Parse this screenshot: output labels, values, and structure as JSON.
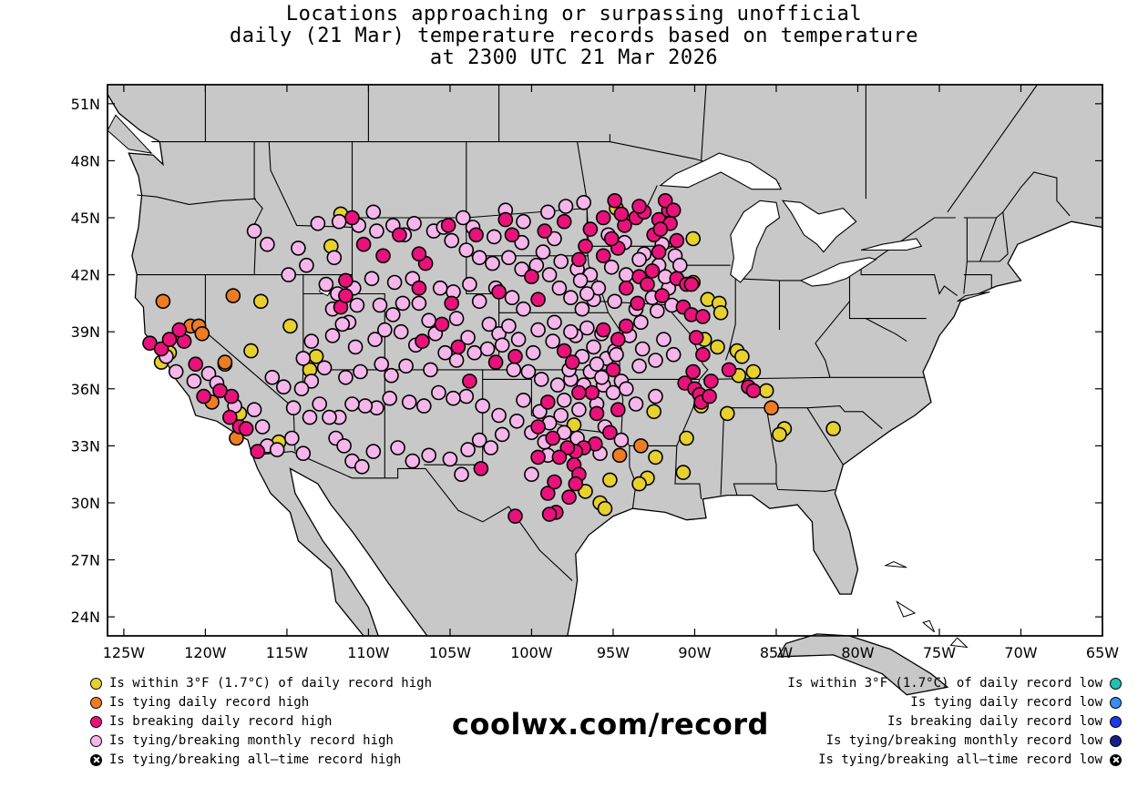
{
  "title": {
    "line1": "Locations approaching or surpassing unofficial",
    "line2": "daily (21 Mar) temperature records based on temperature",
    "line3": "at 2300 UTC 21 Mar 2026"
  },
  "axes": {
    "lat_labels": [
      "51N",
      "48N",
      "45N",
      "42N",
      "39N",
      "36N",
      "33N",
      "30N",
      "27N",
      "24N"
    ],
    "lat_values": [
      51,
      48,
      45,
      42,
      39,
      36,
      33,
      30,
      27,
      24
    ],
    "lon_labels": [
      "125W",
      "120W",
      "115W",
      "110W",
      "105W",
      "100W",
      "95W",
      "90W",
      "85W",
      "80W",
      "75W",
      "70W",
      "65W"
    ],
    "lon_values": [
      -125,
      -120,
      -115,
      -110,
      -105,
      -100,
      -95,
      -90,
      -85,
      -80,
      -75,
      -70,
      -65
    ],
    "lon_range": [
      -126,
      -65
    ],
    "lat_range": [
      23,
      52
    ]
  },
  "colors": {
    "land": "#c8c8c8",
    "near_high": "#e6d12e",
    "tie_high": "#ee7d22",
    "break_high": "#e8127a",
    "monthly_high": "#f5b6ea",
    "alltime_high": "#000000",
    "near_low": "#20c2b2",
    "tie_low": "#3a8cf0",
    "break_low": "#1c39e8",
    "monthly_low": "#142088",
    "alltime_low": "#000000"
  },
  "legend_left": [
    {
      "key": "near_high",
      "label": "Is within 3°F (1.7°C) of daily record high"
    },
    {
      "key": "tie_high",
      "label": "Is tying daily record high"
    },
    {
      "key": "break_high",
      "label": "Is breaking daily record high"
    },
    {
      "key": "monthly_high",
      "label": "Is tying/breaking monthly record high"
    },
    {
      "key": "alltime_high",
      "label": "Is tying/breaking all–time record high"
    }
  ],
  "legend_right": [
    {
      "key": "near_low",
      "label": "Is within 3°F (1.7°C) of daily record low"
    },
    {
      "key": "tie_low",
      "label": "Is tying daily record low"
    },
    {
      "key": "break_low",
      "label": "Is breaking daily record low"
    },
    {
      "key": "monthly_low",
      "label": "Is tying/breaking monthly record low"
    },
    {
      "key": "alltime_low",
      "label": "Is tying/breaking all–time record low"
    }
  ],
  "website": "coolwx.com/record",
  "stations": {
    "near_high": [
      [
        -111.7,
        45.2
      ],
      [
        -112.3,
        43.5
      ],
      [
        -116.6,
        40.6
      ],
      [
        -114.8,
        39.3
      ],
      [
        -117.2,
        38.0
      ],
      [
        -113.2,
        37.7
      ],
      [
        -113.6,
        37.0
      ],
      [
        -122.2,
        37.9
      ],
      [
        -122.7,
        37.4
      ],
      [
        -118.8,
        37.3
      ],
      [
        -117.9,
        34.7
      ],
      [
        -115.5,
        33.2
      ],
      [
        -94.8,
        45.5
      ],
      [
        -90.1,
        43.9
      ],
      [
        -89.2,
        40.7
      ],
      [
        -88.5,
        40.5
      ],
      [
        -88.4,
        40.0
      ],
      [
        -89.4,
        38.6
      ],
      [
        -88.6,
        38.2
      ],
      [
        -87.4,
        38.0
      ],
      [
        -87.1,
        37.7
      ],
      [
        -87.3,
        36.7
      ],
      [
        -86.4,
        36.9
      ],
      [
        -85.6,
        35.9
      ],
      [
        -89.6,
        35.1
      ],
      [
        -88.0,
        34.7
      ],
      [
        -84.5,
        33.9
      ],
      [
        -84.8,
        33.6
      ],
      [
        -81.5,
        33.9
      ],
      [
        -92.5,
        34.8
      ],
      [
        -90.5,
        33.4
      ],
      [
        -92.4,
        32.4
      ],
      [
        -90.7,
        31.6
      ],
      [
        -92.9,
        31.3
      ],
      [
        -93.4,
        31.0
      ],
      [
        -95.2,
        31.2
      ],
      [
        -96.7,
        30.6
      ],
      [
        -95.8,
        30.0
      ],
      [
        -95.5,
        29.7
      ],
      [
        -97.4,
        34.1
      ]
    ],
    "tie_high": [
      [
        -122.6,
        40.6
      ],
      [
        -120.9,
        39.3
      ],
      [
        -120.4,
        39.3
      ],
      [
        -120.2,
        38.9
      ],
      [
        -118.3,
        40.9
      ],
      [
        -118.8,
        37.4
      ],
      [
        -119.6,
        35.3
      ],
      [
        -118.1,
        33.4
      ],
      [
        -85.3,
        35.0
      ],
      [
        -93.3,
        33.0
      ],
      [
        -94.6,
        32.5
      ],
      [
        -90.1,
        41.6
      ]
    ],
    "break_high": [
      [
        -123.4,
        38.4
      ],
      [
        -122.7,
        38.1
      ],
      [
        -122.2,
        38.6
      ],
      [
        -121.3,
        38.5
      ],
      [
        -121.6,
        39.1
      ],
      [
        -120.6,
        37.3
      ],
      [
        -118.4,
        35.6
      ],
      [
        -118.5,
        34.5
      ],
      [
        -117.9,
        34.0
      ],
      [
        -117.5,
        33.9
      ],
      [
        -116.8,
        32.7
      ],
      [
        -120.1,
        35.6
      ],
      [
        -119.1,
        35.9
      ],
      [
        -111.4,
        41.7
      ],
      [
        -111.7,
        40.3
      ],
      [
        -111.4,
        40.9
      ],
      [
        -106.5,
        42.6
      ],
      [
        -110.3,
        43.6
      ],
      [
        -108.1,
        44.1
      ],
      [
        -105.1,
        44.6
      ],
      [
        -103.4,
        44.1
      ],
      [
        -101.2,
        44.1
      ],
      [
        -96.7,
        43.5
      ],
      [
        -95.6,
        43.0
      ],
      [
        -94.7,
        43.4
      ],
      [
        -95.1,
        43.9
      ],
      [
        -94.3,
        44.6
      ],
      [
        -93.6,
        45.0
      ],
      [
        -93.1,
        45.3
      ],
      [
        -92.5,
        44.1
      ],
      [
        -92.2,
        44.9
      ],
      [
        -91.6,
        45.4
      ],
      [
        -91.5,
        44.7
      ],
      [
        -91.1,
        43.8
      ],
      [
        -92.2,
        43.2
      ],
      [
        -92.6,
        42.2
      ],
      [
        -91.1,
        41.8
      ],
      [
        -90.5,
        41.5
      ],
      [
        -92.0,
        40.9
      ],
      [
        -90.7,
        40.3
      ],
      [
        -90.2,
        39.9
      ],
      [
        -89.9,
        38.7
      ],
      [
        -89.5,
        37.8
      ],
      [
        -90.1,
        36.9
      ],
      [
        -90.6,
        36.3
      ],
      [
        -90.0,
        36.0
      ],
      [
        -89.7,
        35.7
      ],
      [
        -89.6,
        35.3
      ],
      [
        -89.1,
        35.6
      ],
      [
        -89.0,
        36.4
      ],
      [
        -89.5,
        39.8
      ],
      [
        -90.2,
        41.5
      ],
      [
        -92.1,
        44.4
      ],
      [
        -94.2,
        41.3
      ],
      [
        -93.4,
        41.9
      ],
      [
        -92.9,
        41.5
      ],
      [
        -93.5,
        40.5
      ],
      [
        -94.2,
        39.3
      ],
      [
        -94.7,
        38.6
      ],
      [
        -95.0,
        37.0
      ],
      [
        -96.3,
        35.8
      ],
      [
        -96.0,
        34.7
      ],
      [
        -95.2,
        33.7
      ],
      [
        -94.7,
        34.9
      ],
      [
        -96.1,
        33.1
      ],
      [
        -96.8,
        32.9
      ],
      [
        -97.3,
        32.7
      ],
      [
        -97.8,
        32.9
      ],
      [
        -97.4,
        32.0
      ],
      [
        -97.1,
        31.5
      ],
      [
        -97.3,
        31.0
      ],
      [
        -97.7,
        30.3
      ],
      [
        -98.5,
        29.5
      ],
      [
        -98.9,
        29.4
      ],
      [
        -99.0,
        30.5
      ],
      [
        -98.6,
        31.1
      ],
      [
        -98.3,
        32.4
      ],
      [
        -98.7,
        33.4
      ],
      [
        -99.6,
        32.4
      ],
      [
        -101.0,
        29.3
      ],
      [
        -103.1,
        31.8
      ],
      [
        -101.0,
        37.7
      ],
      [
        -97.5,
        37.4
      ],
      [
        -98.0,
        38.0
      ],
      [
        -100.0,
        41.9
      ],
      [
        -101.6,
        44.9
      ],
      [
        -99.6,
        34.0
      ],
      [
        -97.1,
        35.8
      ],
      [
        -99.0,
        35.3
      ],
      [
        -86.7,
        36.1
      ],
      [
        -86.4,
        35.9
      ],
      [
        -87.9,
        37.0
      ],
      [
        -94.9,
        45.9
      ],
      [
        -94.5,
        45.2
      ],
      [
        -91.8,
        45.9
      ],
      [
        -91.3,
        45.4
      ],
      [
        -93.4,
        45.6
      ],
      [
        -95.6,
        45.0
      ],
      [
        -96.4,
        44.4
      ],
      [
        -97.1,
        42.8
      ],
      [
        -99.2,
        44.3
      ],
      [
        -98.0,
        44.8
      ],
      [
        -104.9,
        40.5
      ],
      [
        -106.9,
        41.3
      ],
      [
        -106.7,
        38.5
      ],
      [
        -105.5,
        39.4
      ],
      [
        -104.5,
        38.2
      ],
      [
        -103.8,
        36.4
      ],
      [
        -102.2,
        37.4
      ],
      [
        -109.1,
        43.0
      ],
      [
        -111.0,
        45.0
      ],
      [
        -106.9,
        43.1
      ],
      [
        -95.6,
        39.1
      ],
      [
        -99.6,
        40.7
      ],
      [
        -102.0,
        41.1
      ]
    ],
    "monthly_high": [
      [
        -122.4,
        37.7
      ],
      [
        -121.8,
        36.9
      ],
      [
        -120.7,
        36.4
      ],
      [
        -119.8,
        36.8
      ],
      [
        -119.3,
        36.3
      ],
      [
        -118.2,
        35.1
      ],
      [
        -117.0,
        34.9
      ],
      [
        -116.5,
        34.0
      ],
      [
        -116.2,
        33.0
      ],
      [
        -115.6,
        32.8
      ],
      [
        -114.7,
        33.4
      ],
      [
        -114.0,
        32.6
      ],
      [
        -112.0,
        33.4
      ],
      [
        -111.5,
        33.0
      ],
      [
        -111.0,
        32.2
      ],
      [
        -110.4,
        31.9
      ],
      [
        -109.7,
        32.7
      ],
      [
        -108.2,
        32.9
      ],
      [
        -107.3,
        32.2
      ],
      [
        -106.3,
        32.5
      ],
      [
        -105.0,
        32.3
      ],
      [
        -104.3,
        31.5
      ],
      [
        -103.9,
        32.8
      ],
      [
        -103.2,
        33.3
      ],
      [
        -102.5,
        32.9
      ],
      [
        -101.8,
        33.6
      ],
      [
        -102.0,
        34.6
      ],
      [
        -103.0,
        35.1
      ],
      [
        -104.0,
        35.6
      ],
      [
        -104.8,
        35.5
      ],
      [
        -105.7,
        35.8
      ],
      [
        -106.6,
        35.1
      ],
      [
        -107.5,
        35.3
      ],
      [
        -108.7,
        35.5
      ],
      [
        -109.5,
        35.0
      ],
      [
        -110.2,
        35.1
      ],
      [
        -111.0,
        35.2
      ],
      [
        -111.8,
        34.5
      ],
      [
        -112.4,
        34.5
      ],
      [
        -113.0,
        35.2
      ],
      [
        -113.6,
        34.5
      ],
      [
        -114.6,
        35.0
      ],
      [
        -115.2,
        36.1
      ],
      [
        -115.9,
        36.6
      ],
      [
        -114.0,
        37.6
      ],
      [
        -113.5,
        38.5
      ],
      [
        -112.2,
        38.8
      ],
      [
        -111.2,
        39.5
      ],
      [
        -110.8,
        38.2
      ],
      [
        -109.6,
        38.6
      ],
      [
        -109.0,
        39.1
      ],
      [
        -108.5,
        39.9
      ],
      [
        -107.9,
        40.5
      ],
      [
        -106.9,
        40.5
      ],
      [
        -106.3,
        39.6
      ],
      [
        -105.9,
        38.9
      ],
      [
        -105.3,
        37.9
      ],
      [
        -104.6,
        37.5
      ],
      [
        -103.5,
        37.9
      ],
      [
        -102.7,
        38.1
      ],
      [
        -102.0,
        38.9
      ],
      [
        -101.4,
        39.3
      ],
      [
        -100.5,
        40.2
      ],
      [
        -101.2,
        40.8
      ],
      [
        -102.2,
        41.3
      ],
      [
        -103.2,
        40.6
      ],
      [
        -103.8,
        41.5
      ],
      [
        -104.8,
        41.1
      ],
      [
        -105.6,
        41.3
      ],
      [
        -107.3,
        41.8
      ],
      [
        -108.4,
        41.6
      ],
      [
        -109.8,
        41.8
      ],
      [
        -110.9,
        41.3
      ],
      [
        -111.9,
        41.0
      ],
      [
        -112.2,
        40.2
      ],
      [
        -111.6,
        39.4
      ],
      [
        -109.3,
        40.4
      ],
      [
        -108.0,
        39.0
      ],
      [
        -107.1,
        38.3
      ],
      [
        -106.2,
        37.0
      ],
      [
        -107.7,
        37.2
      ],
      [
        -108.6,
        36.7
      ],
      [
        -109.2,
        37.3
      ],
      [
        -110.5,
        36.9
      ],
      [
        -111.4,
        36.6
      ],
      [
        -112.7,
        37.1
      ],
      [
        -113.5,
        36.4
      ],
      [
        -114.1,
        36.0
      ],
      [
        -110.7,
        40.4
      ],
      [
        -112.6,
        41.5
      ],
      [
        -112.1,
        42.9
      ],
      [
        -113.8,
        42.5
      ],
      [
        -114.9,
        42.0
      ],
      [
        -116.2,
        43.6
      ],
      [
        -117.0,
        44.3
      ],
      [
        -114.3,
        43.4
      ],
      [
        -113.1,
        44.7
      ],
      [
        -111.8,
        44.8
      ],
      [
        -110.6,
        44.6
      ],
      [
        -109.5,
        44.3
      ],
      [
        -108.5,
        44.6
      ],
      [
        -107.2,
        44.7
      ],
      [
        -106.0,
        44.3
      ],
      [
        -104.9,
        43.8
      ],
      [
        -104.0,
        43.3
      ],
      [
        -103.2,
        42.9
      ],
      [
        -102.4,
        42.6
      ],
      [
        -101.4,
        42.9
      ],
      [
        -100.6,
        42.3
      ],
      [
        -99.7,
        42.5
      ],
      [
        -98.9,
        42.0
      ],
      [
        -98.3,
        41.3
      ],
      [
        -97.6,
        40.8
      ],
      [
        -96.9,
        40.2
      ],
      [
        -96.2,
        40.7
      ],
      [
        -95.9,
        41.3
      ],
      [
        -96.4,
        42.0
      ],
      [
        -97.2,
        42.3
      ],
      [
        -98.2,
        42.7
      ],
      [
        -99.3,
        43.2
      ],
      [
        -100.6,
        43.7
      ],
      [
        -102.3,
        44.0
      ],
      [
        -103.6,
        44.5
      ],
      [
        -104.2,
        45.0
      ],
      [
        -105.4,
        44.5
      ],
      [
        -107.8,
        44.1
      ],
      [
        -109.7,
        45.3
      ],
      [
        -101.6,
        45.4
      ],
      [
        -100.5,
        44.8
      ],
      [
        -99.0,
        45.3
      ],
      [
        -97.9,
        45.6
      ],
      [
        -96.8,
        45.8
      ],
      [
        -95.3,
        44.1
      ],
      [
        -94.3,
        43.7
      ],
      [
        -93.1,
        43.1
      ],
      [
        -92.2,
        42.5
      ],
      [
        -91.6,
        41.3
      ],
      [
        -91.4,
        40.4
      ],
      [
        -92.3,
        40.1
      ],
      [
        -93.3,
        39.5
      ],
      [
        -94.0,
        38.8
      ],
      [
        -93.2,
        38.1
      ],
      [
        -92.4,
        37.5
      ],
      [
        -91.9,
        38.6
      ],
      [
        -91.3,
        37.8
      ],
      [
        -93.4,
        37.2
      ],
      [
        -94.5,
        36.4
      ],
      [
        -95.6,
        36.2
      ],
      [
        -96.4,
        36.9
      ],
      [
        -97.6,
        36.5
      ],
      [
        -98.4,
        36.2
      ],
      [
        -99.4,
        36.5
      ],
      [
        -100.2,
        36.9
      ],
      [
        -101.1,
        37.0
      ],
      [
        -99.9,
        37.9
      ],
      [
        -98.7,
        38.5
      ],
      [
        -97.3,
        38.8
      ],
      [
        -96.2,
        38.2
      ],
      [
        -95.4,
        37.6
      ],
      [
        -96.0,
        35.2
      ],
      [
        -97.1,
        34.9
      ],
      [
        -98.2,
        34.6
      ],
      [
        -98.9,
        34.2
      ],
      [
        -100.0,
        33.7
      ],
      [
        -100.9,
        34.3
      ],
      [
        -100.5,
        35.4
      ],
      [
        -99.2,
        33.2
      ],
      [
        -98.0,
        33.7
      ],
      [
        -97.2,
        33.4
      ],
      [
        -95.8,
        32.6
      ],
      [
        -94.5,
        33.3
      ],
      [
        -93.6,
        35.2
      ],
      [
        -92.4,
        35.6
      ],
      [
        -94.2,
        36.0
      ],
      [
        -95.5,
        34.0
      ],
      [
        -95.0,
        35.8
      ],
      [
        -96.8,
        36.2
      ],
      [
        -97.7,
        37.0
      ],
      [
        -96.0,
        37.3
      ],
      [
        -94.9,
        38.0
      ],
      [
        -95.7,
        38.9
      ],
      [
        -96.6,
        39.2
      ],
      [
        -97.6,
        39.0
      ],
      [
        -98.6,
        39.5
      ],
      [
        -99.6,
        39.1
      ],
      [
        -100.8,
        38.6
      ],
      [
        -101.8,
        38.3
      ],
      [
        -102.6,
        39.4
      ],
      [
        -96.6,
        41.0
      ],
      [
        -97.0,
        41.7
      ],
      [
        -98.6,
        43.9
      ],
      [
        -95.1,
        42.4
      ],
      [
        -94.2,
        42.0
      ],
      [
        -93.4,
        42.8
      ],
      [
        -92.0,
        43.6
      ],
      [
        -91.2,
        43.0
      ],
      [
        -90.9,
        42.5
      ],
      [
        -91.8,
        41.9
      ],
      [
        -92.6,
        40.8
      ],
      [
        -93.6,
        40.2
      ],
      [
        -94.9,
        40.6
      ],
      [
        -100.0,
        31.5
      ],
      [
        -99.0,
        32.5
      ],
      [
        -99.5,
        34.8
      ],
      [
        -98.0,
        35.4
      ],
      [
        -95.7,
        36.6
      ],
      [
        -94.8,
        37.8
      ],
      [
        -96.9,
        37.7
      ],
      [
        -103.9,
        38.7
      ],
      [
        -104.6,
        39.7
      ]
    ]
  }
}
